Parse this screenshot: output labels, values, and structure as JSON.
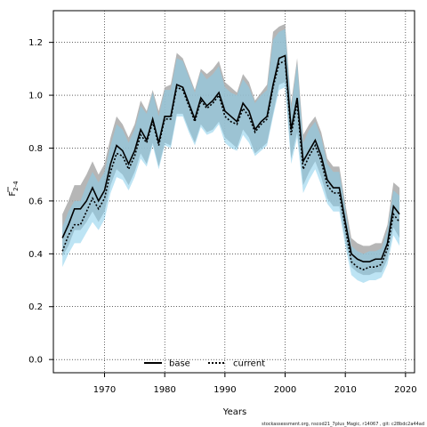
{
  "chart_data": {
    "type": "line",
    "xlabel": "Years",
    "ylabel": "F",
    "ylabel_subscript": "2-4",
    "xlim": [
      1961.5,
      2021.5
    ],
    "ylim": [
      -0.05,
      1.32
    ],
    "xticks": [
      1970,
      1980,
      1990,
      2000,
      2010,
      2020
    ],
    "yticks": [
      0.0,
      0.2,
      0.4,
      0.6,
      0.8,
      1.0,
      1.2
    ],
    "ytick_labels": [
      "0.0",
      "0.2",
      "0.4",
      "0.6",
      "0.8",
      "1.0",
      "1.2"
    ],
    "grid": true,
    "legend_position": "bottom-center",
    "footer_text": "stockassessment.org, nscod21_7plus_Magic, r14067 , git: c28bdc2a44ad",
    "x": [
      1963,
      1964,
      1965,
      1966,
      1967,
      1968,
      1969,
      1970,
      1971,
      1972,
      1973,
      1974,
      1975,
      1976,
      1977,
      1978,
      1979,
      1980,
      1981,
      1982,
      1983,
      1984,
      1985,
      1986,
      1987,
      1988,
      1989,
      1990,
      1991,
      1992,
      1993,
      1994,
      1995,
      1996,
      1997,
      1998,
      1999,
      2000,
      2001,
      2002,
      2003,
      2004,
      2005,
      2006,
      2007,
      2008,
      2009,
      2010,
      2011,
      2012,
      2013,
      2014,
      2015,
      2016,
      2017,
      2018,
      2019
    ],
    "series": [
      {
        "name": "base",
        "color": "#000000",
        "band_color": "#a9a9a9",
        "values": [
          0.46,
          0.51,
          0.57,
          0.57,
          0.6,
          0.65,
          0.6,
          0.64,
          0.74,
          0.81,
          0.79,
          0.74,
          0.79,
          0.87,
          0.83,
          0.91,
          0.82,
          0.92,
          0.92,
          1.04,
          1.03,
          0.97,
          0.91,
          0.99,
          0.96,
          0.98,
          1.01,
          0.94,
          0.92,
          0.9,
          0.97,
          0.94,
          0.87,
          0.9,
          0.92,
          1.04,
          1.14,
          1.15,
          0.87,
          0.99,
          0.75,
          0.79,
          0.83,
          0.77,
          0.68,
          0.65,
          0.65,
          0.52,
          0.4,
          0.38,
          0.37,
          0.37,
          0.38,
          0.38,
          0.44,
          0.58,
          0.55
        ],
        "upper": [
          0.55,
          0.6,
          0.66,
          0.66,
          0.7,
          0.75,
          0.7,
          0.74,
          0.84,
          0.92,
          0.89,
          0.84,
          0.89,
          0.98,
          0.94,
          1.02,
          0.94,
          1.03,
          1.04,
          1.16,
          1.14,
          1.08,
          1.02,
          1.1,
          1.08,
          1.1,
          1.13,
          1.05,
          1.03,
          1.01,
          1.08,
          1.05,
          0.98,
          1.01,
          1.04,
          1.24,
          1.26,
          1.27,
          0.97,
          1.14,
          0.85,
          0.89,
          0.92,
          0.86,
          0.76,
          0.73,
          0.73,
          0.59,
          0.46,
          0.44,
          0.43,
          0.43,
          0.44,
          0.44,
          0.51,
          0.67,
          0.65
        ],
        "lower": [
          0.39,
          0.43,
          0.49,
          0.49,
          0.52,
          0.56,
          0.52,
          0.56,
          0.66,
          0.72,
          0.7,
          0.66,
          0.71,
          0.78,
          0.74,
          0.82,
          0.73,
          0.82,
          0.81,
          0.93,
          0.93,
          0.87,
          0.82,
          0.89,
          0.86,
          0.87,
          0.9,
          0.84,
          0.82,
          0.8,
          0.87,
          0.84,
          0.78,
          0.8,
          0.82,
          0.93,
          1.04,
          1.05,
          0.76,
          0.86,
          0.66,
          0.71,
          0.75,
          0.69,
          0.61,
          0.58,
          0.58,
          0.45,
          0.35,
          0.33,
          0.32,
          0.32,
          0.33,
          0.33,
          0.38,
          0.5,
          0.46
        ]
      },
      {
        "name": "current",
        "color": "#000000",
        "band_color": "#87ceeb",
        "values": [
          0.41,
          0.47,
          0.51,
          0.51,
          0.56,
          0.61,
          0.57,
          0.61,
          0.71,
          0.78,
          0.77,
          0.72,
          0.77,
          0.85,
          0.82,
          0.9,
          0.81,
          0.91,
          0.91,
          1.03,
          1.02,
          0.96,
          0.9,
          0.98,
          0.95,
          0.97,
          1.0,
          0.92,
          0.9,
          0.89,
          0.95,
          0.92,
          0.86,
          0.89,
          0.91,
          1.03,
          1.12,
          1.13,
          0.85,
          0.97,
          0.72,
          0.77,
          0.81,
          0.75,
          0.66,
          0.63,
          0.63,
          0.5,
          0.37,
          0.35,
          0.34,
          0.35,
          0.35,
          0.36,
          0.42,
          0.55,
          0.52
        ],
        "upper": [
          0.5,
          0.56,
          0.6,
          0.6,
          0.66,
          0.71,
          0.67,
          0.71,
          0.81,
          0.89,
          0.87,
          0.82,
          0.87,
          0.96,
          0.93,
          1.01,
          0.92,
          1.02,
          1.02,
          1.14,
          1.13,
          1.07,
          1.01,
          1.09,
          1.06,
          1.08,
          1.11,
          1.03,
          1.01,
          1.0,
          1.06,
          1.03,
          0.97,
          1.0,
          1.02,
          1.21,
          1.24,
          1.25,
          0.95,
          1.12,
          0.82,
          0.87,
          0.9,
          0.84,
          0.74,
          0.71,
          0.71,
          0.57,
          0.43,
          0.41,
          0.4,
          0.41,
          0.41,
          0.42,
          0.49,
          0.64,
          0.62
        ],
        "lower": [
          0.35,
          0.4,
          0.44,
          0.44,
          0.48,
          0.52,
          0.49,
          0.53,
          0.63,
          0.69,
          0.68,
          0.64,
          0.69,
          0.76,
          0.73,
          0.81,
          0.72,
          0.81,
          0.8,
          0.92,
          0.92,
          0.86,
          0.81,
          0.88,
          0.85,
          0.86,
          0.89,
          0.82,
          0.8,
          0.79,
          0.85,
          0.82,
          0.77,
          0.79,
          0.81,
          0.92,
          1.02,
          1.03,
          0.74,
          0.84,
          0.63,
          0.68,
          0.72,
          0.66,
          0.59,
          0.56,
          0.56,
          0.43,
          0.32,
          0.3,
          0.29,
          0.3,
          0.3,
          0.31,
          0.36,
          0.47,
          0.43
        ]
      }
    ]
  }
}
